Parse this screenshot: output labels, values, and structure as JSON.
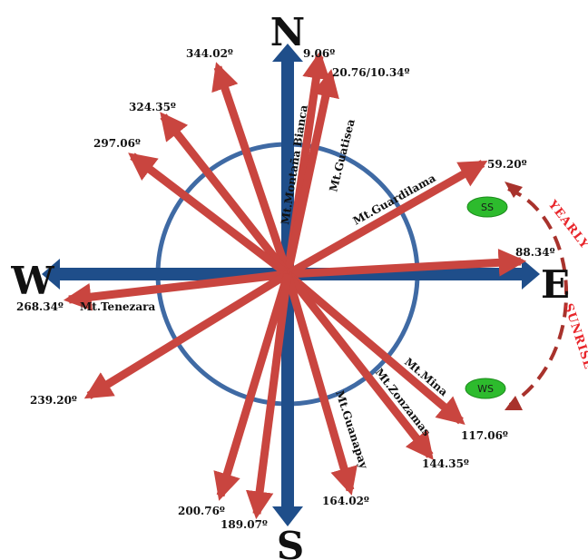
{
  "cardinals": {
    "north": "N",
    "east": "E",
    "south": "S",
    "west": "W"
  },
  "degree_labels": {
    "d344": "344.02º",
    "d9": "9.06º",
    "d20": "20.76/10.34º",
    "d324": "324.35º",
    "d297": "297.06º",
    "d59": "59.20º",
    "d88": "88.34º",
    "d268": "268.34º",
    "d239": "239.20º",
    "d117": "117.06º",
    "d144": "144.35º",
    "d164": "164.02º",
    "d200": "200.76º",
    "d189": "189.07º"
  },
  "mountains": {
    "montana_blanca": "Mt.Montaña Bianca",
    "guatisea": "Mt.Guatisea",
    "guardilama": "Mt.Guardilama",
    "tenezara": "Mt.Tenezara",
    "mina": "Mt.Mina",
    "zonzamas": "Mt.Zonzamas",
    "guanapay": "Mt.Guanapay"
  },
  "pills": {
    "summer": "SS",
    "winter": "WS"
  },
  "arc_text": {
    "yearly": "YEARLY",
    "sunrise": "SUNRISE"
  },
  "colors": {
    "compass_blue": "#1f4e8a",
    "ray_red": "#c9453f",
    "arc_red": "#a8322c",
    "pill_green": "#2dbb2d",
    "circle_blue": "#3f6aa4"
  }
}
